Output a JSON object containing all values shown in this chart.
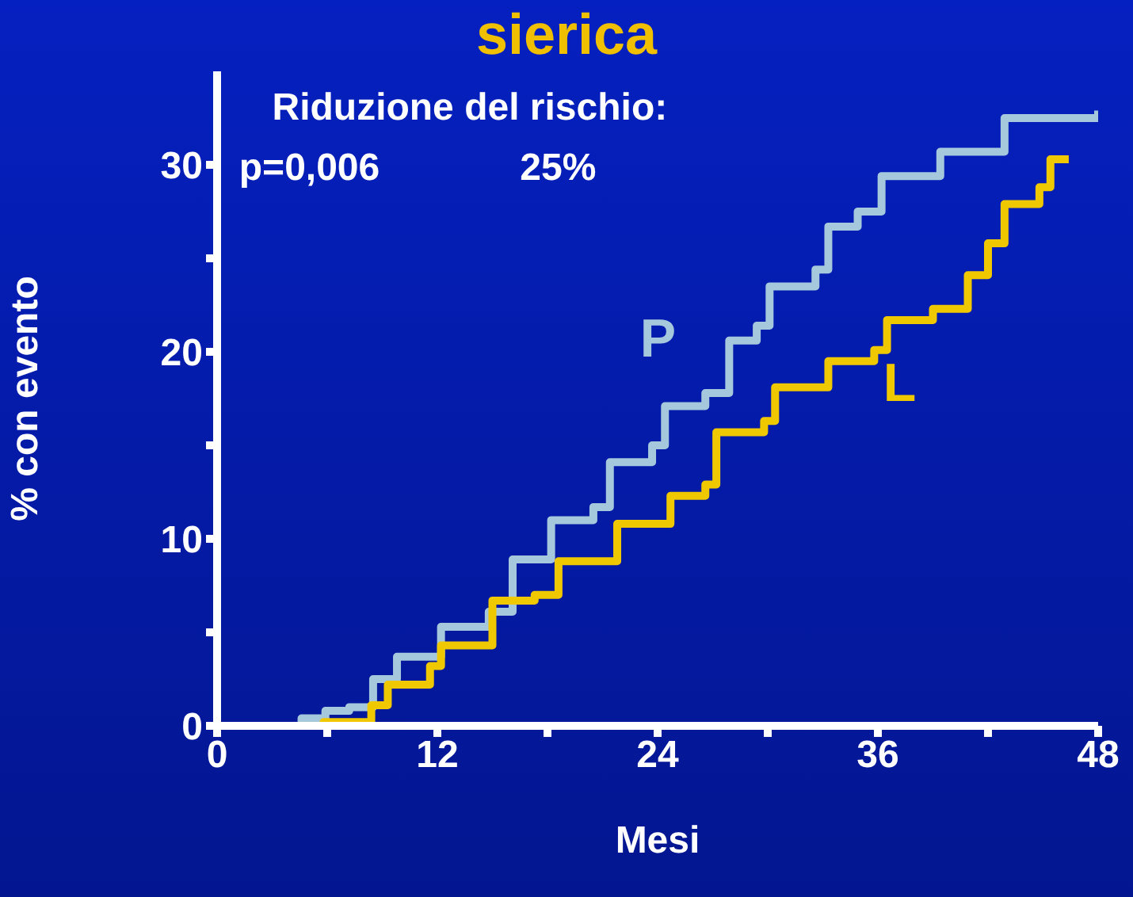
{
  "chart_data": {
    "type": "step",
    "title": "sierica",
    "xlabel": "Mesi",
    "ylabel": "% con evento",
    "annotations": [
      "Riduzione del rischio:",
      "p=0,006",
      "25%"
    ],
    "xlim": [
      0,
      48
    ],
    "ylim": [
      0,
      35
    ],
    "xticks": [
      0,
      {
        "value": 6,
        "label": null
      },
      12,
      {
        "value": 18,
        "label": null
      },
      24,
      {
        "value": 30,
        "label": null
      },
      36,
      {
        "value": 42,
        "label": null
      },
      48
    ],
    "yticks": [
      0,
      {
        "value": 5,
        "label": null
      },
      10,
      {
        "value": 15,
        "label": null
      },
      20,
      {
        "value": 25,
        "label": null
      },
      30
    ],
    "grid": false,
    "legend": false,
    "marker": "none",
    "line_style": "solid",
    "series": [
      {
        "name": "P",
        "color": "#a6c8dc",
        "x": [
          0,
          4.6,
          5.9,
          7.2,
          8.5,
          9.8,
          12.2,
          14.8,
          16.1,
          18.2,
          20.5,
          21.4,
          23.7,
          24.4,
          26.6,
          27.9,
          29.4,
          30.1,
          32.6,
          33.3,
          34.9,
          36.2,
          39.4,
          42.9,
          48
        ],
        "values": [
          0,
          0.4,
          0.8,
          1,
          2.5,
          3.7,
          5.3,
          6.1,
          8.9,
          11.0,
          11.7,
          14.1,
          15.0,
          17.1,
          17.8,
          20.6,
          21.4,
          23.5,
          24.4,
          26.7,
          27.5,
          29.4,
          30.7,
          32.5,
          32.9
        ]
      },
      {
        "name": "L",
        "color": "#f0c800",
        "x": [
          0,
          5.8,
          8.4,
          9.3,
          11.6,
          12.2,
          15.0,
          17.3,
          18.6,
          21.8,
          24.7,
          26.6,
          27.2,
          29.8,
          30.4,
          33.3,
          35.8,
          36.5,
          39.0,
          40.9,
          42.0,
          42.9,
          44.8,
          45.4,
          46.4
        ],
        "values": [
          0,
          0.2,
          1.1,
          2.2,
          3.2,
          4.3,
          6.7,
          7.0,
          8.8,
          10.8,
          12.3,
          12.9,
          15.7,
          16.3,
          18.1,
          19.5,
          20.1,
          21.7,
          22.3,
          24.1,
          25.8,
          27.9,
          28.8,
          30.3,
          30.3
        ]
      }
    ]
  }
}
